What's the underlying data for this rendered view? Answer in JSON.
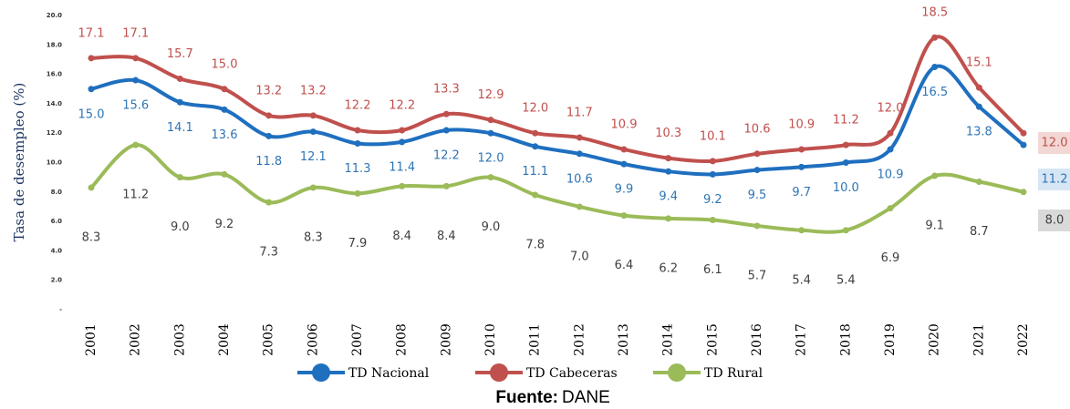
{
  "chart_data": {
    "type": "line",
    "y_label": "Tasa de desempleo (%)",
    "source": {
      "label": "Fuente:",
      "text": "DANE"
    },
    "categories": [
      "2001",
      "2002",
      "2003",
      "2004",
      "2005",
      "2006",
      "2007",
      "2008",
      "2009",
      "2010",
      "2011",
      "2012",
      "2013",
      "2014",
      "2015",
      "2016",
      "2017",
      "2018",
      "2019",
      "2020",
      "2021",
      "2022"
    ],
    "ylim": [
      0,
      20
    ],
    "yticks": [
      {
        "value": 0,
        "label": "-"
      },
      {
        "value": 2,
        "label": "2.0"
      },
      {
        "value": 4,
        "label": "4.0"
      },
      {
        "value": 6,
        "label": "6.0"
      },
      {
        "value": 8,
        "label": "8.0"
      },
      {
        "value": 10,
        "label": "10.0"
      },
      {
        "value": 12,
        "label": "12.0"
      },
      {
        "value": 14,
        "label": "14.0"
      },
      {
        "value": 16,
        "label": "16.0"
      },
      {
        "value": 18,
        "label": "18.0"
      },
      {
        "value": 20,
        "label": "20.0"
      }
    ],
    "series": [
      {
        "name": "TD Nacional",
        "color": "#1f6fbf",
        "values": [
          15.0,
          15.6,
          14.1,
          13.6,
          11.8,
          12.1,
          11.3,
          11.4,
          12.2,
          12.0,
          11.1,
          10.6,
          9.9,
          9.4,
          9.2,
          9.5,
          9.7,
          10.0,
          10.9,
          16.5,
          13.8,
          11.2
        ],
        "value_labels": [
          "15.0",
          "15.6",
          "14.1",
          "13.6",
          "11.8",
          "12.1",
          "11.3",
          "11.4",
          "12.2",
          "12.0",
          "11.1",
          "10.6",
          "9.9",
          "9.4",
          "9.2",
          "9.5",
          "9.7",
          "10.0",
          "10.9",
          "16.5",
          "13.8",
          "11.2"
        ]
      },
      {
        "name": "TD Cabeceras",
        "color": "#c0504d",
        "values": [
          17.1,
          17.1,
          15.7,
          15.0,
          13.2,
          13.2,
          12.2,
          12.2,
          13.3,
          12.9,
          12.0,
          11.7,
          10.9,
          10.3,
          10.1,
          10.6,
          10.9,
          11.2,
          12.0,
          18.5,
          15.1,
          12.0
        ],
        "value_labels": [
          "17.1",
          "17.1",
          "15.7",
          "15.0",
          "13.2",
          "13.2",
          "12.2",
          "12.2",
          "13.3",
          "12.9",
          "12.0",
          "11.7",
          "10.9",
          "10.3",
          "10.1",
          "10.6",
          "10.9",
          "11.2",
          "12.0",
          "18.5",
          "15.1",
          "12.0"
        ]
      },
      {
        "name": "TD Rural",
        "color": "#9bbb59",
        "values": [
          8.3,
          11.2,
          9.0,
          9.2,
          7.3,
          8.3,
          7.9,
          8.4,
          8.4,
          9.0,
          7.8,
          7.0,
          6.4,
          6.2,
          6.1,
          5.7,
          5.4,
          5.4,
          6.9,
          9.1,
          8.7,
          8.0
        ],
        "value_labels": [
          "8.3",
          "11.2",
          "9.0",
          "9.2",
          "7.3",
          "8.3",
          "7.9",
          "8.4",
          "8.4",
          "9.0",
          "7.8",
          "7.0",
          "6.4",
          "6.2",
          "6.1",
          "5.7",
          "5.4",
          "5.4",
          "6.9",
          "9.1",
          "8.7",
          "8.0"
        ]
      }
    ]
  }
}
